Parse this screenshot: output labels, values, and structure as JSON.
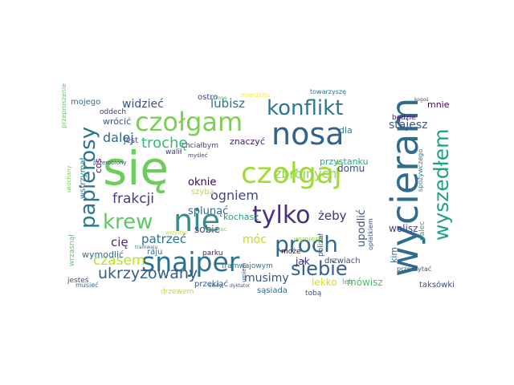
{
  "word_cloud": {
    "words": [
      {
        "text": "się",
        "color": "#6ccd5a"
      },
      {
        "text": "wycieram",
        "color": "#2f6c8e"
      },
      {
        "text": "nosa",
        "color": "#33638d"
      },
      {
        "text": "czołgam",
        "color": "#7ad151"
      },
      {
        "text": "czołgaj",
        "color": "#a2da37"
      },
      {
        "text": "snajper",
        "color": "#2c728e"
      },
      {
        "text": "nie",
        "color": "#3b8b8c"
      },
      {
        "text": "krew",
        "color": "#5ec962"
      },
      {
        "text": "papierosy",
        "color": "#2b758e"
      },
      {
        "text": "tylko",
        "color": "#46327e"
      },
      {
        "text": "proch",
        "color": "#31688e"
      },
      {
        "text": "wyszedłem",
        "color": "#1fa187"
      },
      {
        "text": "konflikt",
        "color": "#2a788e"
      },
      {
        "text": "siebie",
        "color": "#355f8d"
      },
      {
        "text": "ukrzyżowany",
        "color": "#365c8d"
      },
      {
        "text": "czasem",
        "color": "#bddf26"
      },
      {
        "text": "frakcji",
        "color": "#443983"
      },
      {
        "text": "dalej",
        "color": "#31688e"
      },
      {
        "text": "trochę",
        "color": "#35b779"
      },
      {
        "text": "zbrojnych",
        "color": "#8fd744"
      },
      {
        "text": "ogniem",
        "color": "#414487"
      },
      {
        "text": "lubisz",
        "color": "#2c728e"
      },
      {
        "text": "żeby",
        "color": "#472d7b"
      },
      {
        "text": "patrzeć",
        "color": "#2c728e"
      },
      {
        "text": "musimy",
        "color": "#3b528b"
      },
      {
        "text": "móc",
        "color": "#b5de2b"
      },
      {
        "text": "cię",
        "color": "#482878"
      },
      {
        "text": "widzieć",
        "color": "#3b528b"
      },
      {
        "text": "upodlić",
        "color": "#39568c"
      },
      {
        "text": "wolisz",
        "color": "#414487"
      },
      {
        "text": "stajesz",
        "color": "#38588c"
      },
      {
        "text": "splunąć",
        "color": "#2e6e8e"
      },
      {
        "text": "kochasz",
        "color": "#20a386"
      },
      {
        "text": "oknie",
        "color": "#440154"
      },
      {
        "text": "sobie",
        "color": "#3e4a89"
      },
      {
        "text": "lekko",
        "color": "#d8e219"
      },
      {
        "text": "mówisz",
        "color": "#4ac16d"
      },
      {
        "text": "jak",
        "color": "#482878"
      },
      {
        "text": "domu",
        "color": "#3e4a89"
      },
      {
        "text": "mnie",
        "color": "#440154"
      },
      {
        "text": "raju",
        "color": "#31688e"
      },
      {
        "text": "wymodlić",
        "color": "#2c728e"
      },
      {
        "text": "wrócić",
        "color": "#3b528b"
      },
      {
        "text": "mojego",
        "color": "#31688e"
      },
      {
        "text": "znaczyć",
        "color": "#481668"
      },
      {
        "text": "dla",
        "color": "#25848e"
      },
      {
        "text": "coś",
        "color": "#460a5d"
      },
      {
        "text": "jest",
        "color": "#404688"
      },
      {
        "text": "oddech",
        "color": "#46337e"
      },
      {
        "text": "ostro",
        "color": "#3e4989"
      },
      {
        "text": "przystanku",
        "color": "#22a884"
      },
      {
        "text": "wstrzymał",
        "color": "#297a8e"
      },
      {
        "text": "wrzasnął",
        "color": "#5ec962"
      },
      {
        "text": "szybą",
        "color": "#bddf26"
      },
      {
        "text": "parku",
        "color": "#481b6d"
      },
      {
        "text": "tramwajowym",
        "color": "#2a788e"
      },
      {
        "text": "przekląć",
        "color": "#39568c"
      },
      {
        "text": "sąsiada",
        "color": "#31688e"
      },
      {
        "text": "tobą",
        "color": "#3b528b"
      },
      {
        "text": "leb",
        "color": "#4ac16d"
      },
      {
        "text": "taksówki",
        "color": "#3e4a89"
      },
      {
        "text": "będzie",
        "color": "#481668"
      },
      {
        "text": "kim",
        "color": "#2c728e"
      },
      {
        "text": "wyniesli",
        "color": "#8fd744"
      },
      {
        "text": "drzwiach",
        "color": "#3e4a89"
      },
      {
        "text": "palec",
        "color": "#22a884"
      },
      {
        "text": "polizał",
        "color": "#3b528b"
      },
      {
        "text": "może",
        "color": "#440154"
      },
      {
        "text": "walił",
        "color": "#46327e"
      },
      {
        "text": "chciałbym",
        "color": "#414487"
      },
      {
        "text": "drzewem",
        "color": "#c8e020"
      },
      {
        "text": "jesteś",
        "color": "#3e4a89"
      },
      {
        "text": "musieć",
        "color": "#31688e"
      },
      {
        "text": "przeczytać",
        "color": "#3b528b"
      },
      {
        "text": "spożywczego",
        "color": "#2a788e"
      },
      {
        "text": "opłatkiem",
        "color": "#3b528b"
      },
      {
        "text": "mierzchu",
        "color": "#fde725"
      },
      {
        "text": "towarzyszę",
        "color": "#2c728e"
      },
      {
        "text": "kogoś",
        "color": "#3b528b"
      },
      {
        "text": "przeproszenie",
        "color": "#5ec962"
      },
      {
        "text": "przerobiony",
        "color": "#3b528b"
      },
      {
        "text": "ukochany",
        "color": "#7ad151"
      },
      {
        "text": "uciekać",
        "color": "#8fd744"
      },
      {
        "text": "kiedy",
        "color": "#31688e"
      },
      {
        "text": "myśleć",
        "color": "#414487"
      },
      {
        "text": "tramwaju",
        "color": "#2c728e"
      },
      {
        "text": "płonę",
        "color": "#4ac16d"
      },
      {
        "text": "umiem",
        "color": "#3b528b"
      },
      {
        "text": "dyktator",
        "color": "#3b528b"
      },
      {
        "text": "wszystko",
        "color": "#bddf26"
      }
    ]
  }
}
